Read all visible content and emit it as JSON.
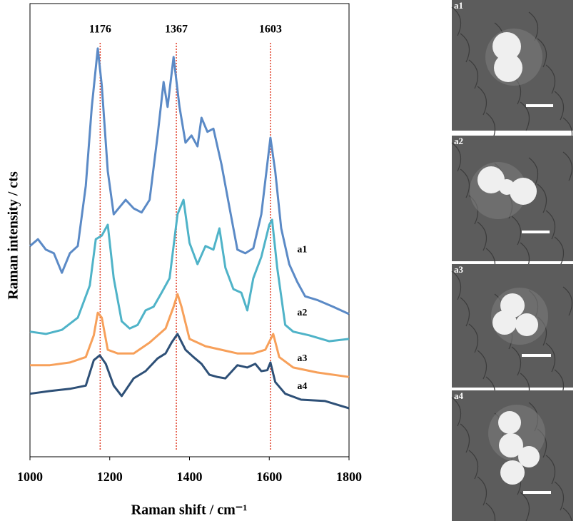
{
  "chart_data": {
    "type": "line",
    "x_label": "Raman shift / cm⁻¹",
    "y_label": "Raman intensity / cts",
    "xlim": [
      1000,
      1800
    ],
    "xticks": [
      1000,
      1200,
      1400,
      1600,
      1800
    ],
    "ylim": [
      0,
      100
    ],
    "peak_lines": [
      1176,
      1367,
      1603
    ],
    "peak_line_color": "#e0402a",
    "series": [
      {
        "name": "a1",
        "color": "#5b8ac6",
        "x": [
          1000,
          1020,
          1040,
          1060,
          1080,
          1100,
          1120,
          1140,
          1155,
          1170,
          1180,
          1195,
          1210,
          1225,
          1240,
          1260,
          1280,
          1300,
          1320,
          1335,
          1345,
          1360,
          1375,
          1390,
          1405,
          1420,
          1430,
          1445,
          1460,
          1480,
          1500,
          1520,
          1540,
          1560,
          1580,
          1595,
          1603,
          1615,
          1630,
          1650,
          1670,
          1690,
          1720,
          1760,
          1800
        ],
        "values": [
          46.5,
          48,
          45.7,
          44.9,
          40.6,
          44.9,
          46.5,
          59.8,
          77.2,
          90.1,
          81.9,
          63,
          53.5,
          55.1,
          56.7,
          54.8,
          53.9,
          56.7,
          70.9,
          82.7,
          77.2,
          88.2,
          77.2,
          69.3,
          70.9,
          68.5,
          74.8,
          71.7,
          72.4,
          64.6,
          55.1,
          45.7,
          44.9,
          46,
          53.5,
          64.6,
          70.4,
          63,
          50.4,
          42.5,
          38.6,
          35.4,
          34.6,
          33.1,
          31.5
        ]
      },
      {
        "name": "a2",
        "color": "#4fb3c8",
        "x": [
          1000,
          1040,
          1080,
          1120,
          1150,
          1165,
          1180,
          1195,
          1210,
          1230,
          1250,
          1270,
          1290,
          1310,
          1330,
          1350,
          1370,
          1385,
          1400,
          1420,
          1440,
          1460,
          1475,
          1490,
          1510,
          1530,
          1545,
          1560,
          1580,
          1600,
          1607,
          1620,
          1640,
          1660,
          1700,
          1750,
          1800
        ],
        "values": [
          27.6,
          27.1,
          28,
          30.7,
          37.8,
          48,
          48.8,
          51.2,
          39.4,
          29.9,
          28.3,
          29.1,
          32.3,
          33.1,
          36.2,
          39.4,
          53.5,
          56.7,
          47.2,
          42.5,
          46.5,
          45.7,
          50.4,
          41.7,
          37,
          36.2,
          32.3,
          39.4,
          44.1,
          51.2,
          52.3,
          41.7,
          29.1,
          27.6,
          26.8,
          25.5,
          26
        ]
      },
      {
        "name": "a3",
        "color": "#f7a05a",
        "x": [
          1000,
          1050,
          1100,
          1140,
          1160,
          1170,
          1180,
          1195,
          1220,
          1260,
          1300,
          1340,
          1360,
          1370,
          1380,
          1400,
          1440,
          1480,
          1520,
          1560,
          1590,
          1610,
          1625,
          1660,
          1720,
          1800
        ],
        "values": [
          20.2,
          20.2,
          20.8,
          22,
          26.8,
          31.8,
          30.7,
          23.6,
          22.8,
          22.8,
          25.2,
          28.3,
          33.1,
          35.9,
          33.1,
          26,
          24.4,
          23.6,
          22.8,
          22.8,
          23.6,
          27.1,
          22,
          19.7,
          18.6,
          17.6
        ]
      },
      {
        "name": "a4",
        "color": "#2e5077",
        "x": [
          1000,
          1050,
          1100,
          1140,
          1160,
          1175,
          1190,
          1210,
          1230,
          1260,
          1290,
          1320,
          1340,
          1355,
          1370,
          1390,
          1410,
          1430,
          1450,
          1470,
          1490,
          1520,
          1545,
          1565,
          1580,
          1595,
          1603,
          1615,
          1640,
          1680,
          1740,
          1800
        ],
        "values": [
          13.9,
          14.5,
          15,
          15.7,
          21.3,
          22.4,
          20.5,
          15.7,
          13.4,
          17.3,
          18.9,
          21.7,
          22.8,
          25.2,
          27.1,
          23.6,
          22,
          20.5,
          18.1,
          17.6,
          17.3,
          20.2,
          19.7,
          20.5,
          18.9,
          19.1,
          20.8,
          16.5,
          13.9,
          12.6,
          12.3,
          10.7
        ]
      }
    ]
  },
  "image_labels": [
    "a1",
    "a2",
    "a3",
    "a4"
  ]
}
